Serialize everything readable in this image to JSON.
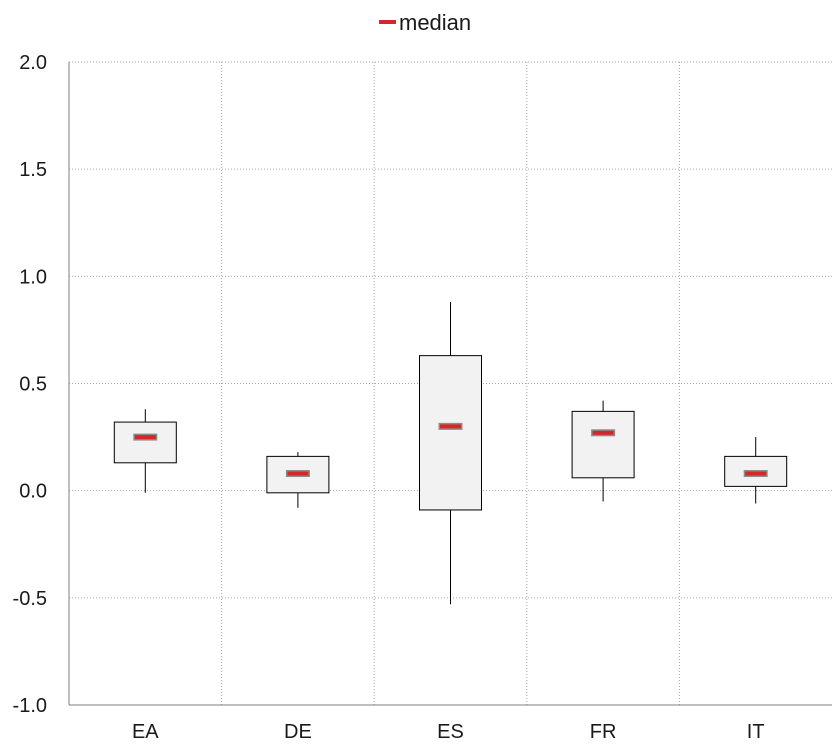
{
  "chart_data": {
    "type": "box",
    "legend": {
      "entries": [
        {
          "name": "median",
          "color": "#d62728"
        }
      ],
      "position": "top-center"
    },
    "categories": [
      "EA",
      "DE",
      "ES",
      "FR",
      "IT"
    ],
    "boxes": [
      {
        "category": "EA",
        "whisker_low": -0.01,
        "q1": 0.13,
        "median": 0.25,
        "q3": 0.32,
        "whisker_high": 0.38
      },
      {
        "category": "DE",
        "whisker_low": -0.08,
        "q1": -0.01,
        "median": 0.08,
        "q3": 0.16,
        "whisker_high": 0.18
      },
      {
        "category": "ES",
        "whisker_low": -0.53,
        "q1": -0.09,
        "median": 0.3,
        "q3": 0.63,
        "whisker_high": 0.88
      },
      {
        "category": "FR",
        "whisker_low": -0.05,
        "q1": 0.06,
        "median": 0.27,
        "q3": 0.37,
        "whisker_high": 0.42
      },
      {
        "category": "IT",
        "whisker_low": -0.06,
        "q1": 0.02,
        "median": 0.08,
        "q3": 0.16,
        "whisker_high": 0.25
      }
    ],
    "yticks": [
      "2.0",
      "1.5",
      "1.0",
      "0.5",
      "0.0",
      "-0.5",
      "-1.0"
    ],
    "ylim": [
      -1.0,
      2.0
    ],
    "grid": true,
    "colors": {
      "median": "#d62728",
      "box_fill": "#f2f2f2",
      "grid": "#a6a6a6"
    }
  }
}
